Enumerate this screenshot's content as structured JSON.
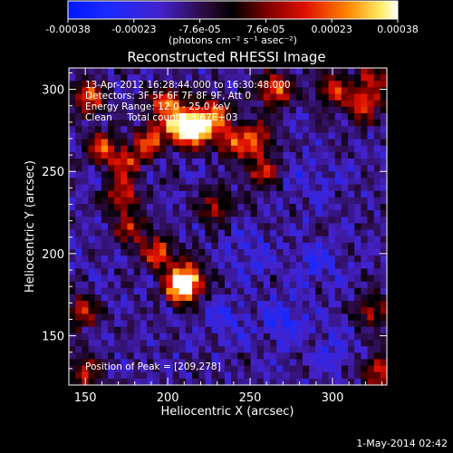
{
  "chart_data": {
    "type": "heatmap",
    "title": "Reconstructed RHESSI Image",
    "xlabel": "Heliocentric X (arcsec)",
    "ylabel": "Heliocentric Y (arcsec)",
    "xlim": [
      140,
      333
    ],
    "ylim": [
      120,
      313
    ],
    "x_ticks": [
      150,
      200,
      250,
      300
    ],
    "y_ticks": [
      150,
      200,
      250,
      300
    ],
    "colorbar": {
      "ticks": [
        "-0.00038",
        "-0.00023",
        "-7.6e-05",
        "7.6e-05",
        "0.00023",
        "0.00038"
      ],
      "range": [
        -0.00038,
        0.00038
      ],
      "units_label": "(photons cm⁻² s⁻¹ asec⁻²)"
    },
    "annotations": {
      "time_range": "13-Apr-2012 16:28:44.000 to 16:30:48.000",
      "detectors": "Detectors: 3F 5F 6F 7F 8F 9F, Att 0",
      "energy_range": "Energy Range: 12.0 - 25.0 keV",
      "clean_counts": "Clean     Total counts: 3.67E+03",
      "peak_position": "Position of Peak = [209,278]"
    },
    "bright_sources": [
      {
        "x": 209,
        "y": 278,
        "intensity": 1.0
      },
      {
        "x": 218,
        "y": 275,
        "intensity": 0.95
      },
      {
        "x": 200,
        "y": 292,
        "intensity": 0.8
      },
      {
        "x": 228,
        "y": 285,
        "intensity": 0.75
      },
      {
        "x": 190,
        "y": 270,
        "intensity": 0.7
      },
      {
        "x": 240,
        "y": 268,
        "intensity": 0.65
      },
      {
        "x": 175,
        "y": 255,
        "intensity": 0.6
      },
      {
        "x": 172,
        "y": 235,
        "intensity": 0.6
      },
      {
        "x": 178,
        "y": 215,
        "intensity": 0.55
      },
      {
        "x": 195,
        "y": 200,
        "intensity": 0.7
      },
      {
        "x": 212,
        "y": 185,
        "intensity": 0.85
      },
      {
        "x": 208,
        "y": 178,
        "intensity": 0.8
      },
      {
        "x": 152,
        "y": 295,
        "intensity": 0.7
      },
      {
        "x": 160,
        "y": 265,
        "intensity": 0.6
      },
      {
        "x": 258,
        "y": 250,
        "intensity": 0.6
      },
      {
        "x": 255,
        "y": 270,
        "intensity": 0.55
      },
      {
        "x": 265,
        "y": 300,
        "intensity": 0.75
      },
      {
        "x": 300,
        "y": 300,
        "intensity": 0.6
      },
      {
        "x": 318,
        "y": 290,
        "intensity": 0.65
      },
      {
        "x": 325,
        "y": 305,
        "intensity": 0.55
      },
      {
        "x": 230,
        "y": 228,
        "intensity": 0.55
      },
      {
        "x": 148,
        "y": 165,
        "intensity": 0.55
      },
      {
        "x": 325,
        "y": 165,
        "intensity": 0.5
      },
      {
        "x": 328,
        "y": 128,
        "intensity": 0.6
      },
      {
        "x": 150,
        "y": 128,
        "intensity": 0.5
      }
    ],
    "dark_sources": [
      {
        "x": 270,
        "y": 160,
        "intensity": 0.6
      },
      {
        "x": 250,
        "y": 200,
        "intensity": 0.45
      },
      {
        "x": 290,
        "y": 195,
        "intensity": 0.5
      },
      {
        "x": 235,
        "y": 160,
        "intensity": 0.4
      },
      {
        "x": 300,
        "y": 140,
        "intensity": 0.4
      },
      {
        "x": 285,
        "y": 245,
        "intensity": 0.35
      }
    ]
  },
  "footer": {
    "date_stamp": "1-May-2014 02:42"
  }
}
